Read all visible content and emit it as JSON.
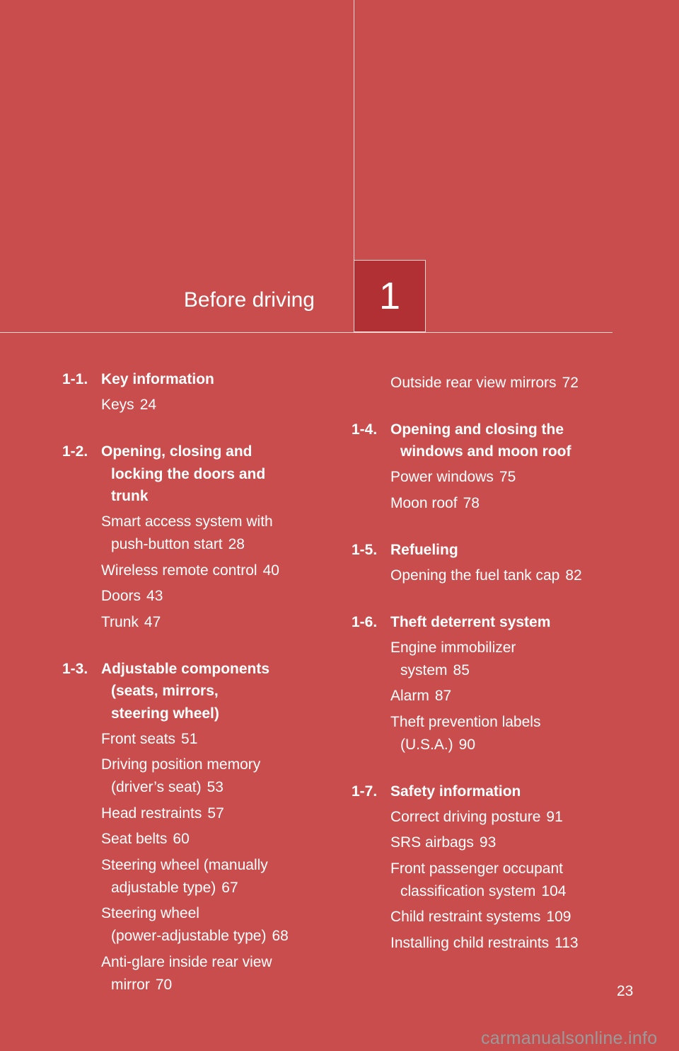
{
  "chapter": {
    "title": "Before driving",
    "number": "1"
  },
  "colors": {
    "background": "#c94d4d",
    "chapter_box": "#b03033",
    "text": "#ffffff"
  },
  "left_column": [
    {
      "number": "1-1.",
      "title": [
        "Key information"
      ],
      "items": [
        {
          "lines": [
            "Keys"
          ],
          "page": "24"
        }
      ]
    },
    {
      "number": "1-2.",
      "title": [
        "Opening, closing and",
        "locking the doors and",
        "trunk"
      ],
      "items": [
        {
          "lines": [
            "Smart access system with",
            "push-button start"
          ],
          "page": "28"
        },
        {
          "lines": [
            "Wireless remote control"
          ],
          "page": "40"
        },
        {
          "lines": [
            "Doors"
          ],
          "page": "43"
        },
        {
          "lines": [
            "Trunk"
          ],
          "page": "47"
        }
      ]
    },
    {
      "number": "1-3.",
      "title": [
        "Adjustable components",
        "(seats, mirrors,",
        "steering wheel)"
      ],
      "items": [
        {
          "lines": [
            "Front seats"
          ],
          "page": "51"
        },
        {
          "lines": [
            "Driving position memory",
            "(driver’s seat)"
          ],
          "page": "53"
        },
        {
          "lines": [
            "Head restraints"
          ],
          "page": "57"
        },
        {
          "lines": [
            "Seat belts"
          ],
          "page": "60"
        },
        {
          "lines": [
            "Steering wheel (manually",
            "adjustable type)"
          ],
          "page": "67"
        },
        {
          "lines": [
            "Steering wheel",
            "(power-adjustable type)"
          ],
          "page": "68"
        },
        {
          "lines": [
            "Anti-glare inside rear view",
            "mirror"
          ],
          "page": "70"
        }
      ]
    }
  ],
  "right_column": [
    {
      "number": "",
      "title": [],
      "items": [
        {
          "lines": [
            "Outside rear view mirrors"
          ],
          "page": "72"
        }
      ]
    },
    {
      "number": "1-4.",
      "title": [
        "Opening and closing the",
        "windows and moon roof"
      ],
      "items": [
        {
          "lines": [
            "Power windows"
          ],
          "page": "75"
        },
        {
          "lines": [
            "Moon roof"
          ],
          "page": "78"
        }
      ]
    },
    {
      "number": "1-5.",
      "title": [
        "Refueling"
      ],
      "items": [
        {
          "lines": [
            "Opening the fuel tank cap"
          ],
          "page": "82"
        }
      ]
    },
    {
      "number": "1-6.",
      "title": [
        "Theft deterrent system"
      ],
      "items": [
        {
          "lines": [
            "Engine immobilizer",
            "system"
          ],
          "page": "85"
        },
        {
          "lines": [
            "Alarm"
          ],
          "page": "87"
        },
        {
          "lines": [
            "Theft prevention labels",
            "(U.S.A.)"
          ],
          "page": "90"
        }
      ]
    },
    {
      "number": "1-7.",
      "title": [
        "Safety information"
      ],
      "items": [
        {
          "lines": [
            "Correct driving posture"
          ],
          "page": "91"
        },
        {
          "lines": [
            "SRS airbags"
          ],
          "page": "93"
        },
        {
          "lines": [
            "Front passenger occupant",
            "classification system"
          ],
          "page": "104"
        },
        {
          "lines": [
            "Child restraint systems"
          ],
          "page": "109"
        },
        {
          "lines": [
            "Installing child restraints"
          ],
          "page": "113"
        }
      ]
    }
  ],
  "page_number": "23",
  "watermark": "carmanualsonline.info"
}
